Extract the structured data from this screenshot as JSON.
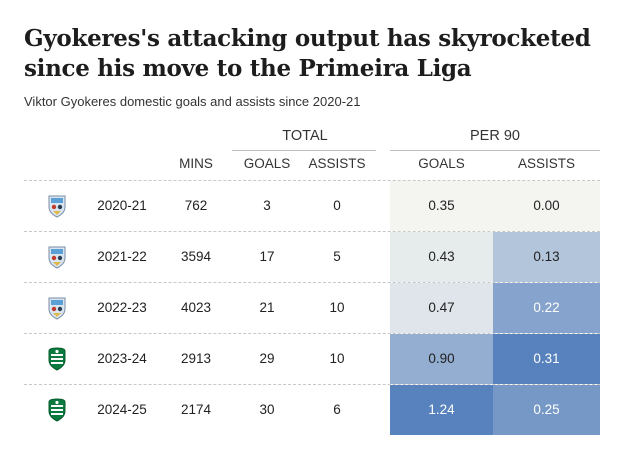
{
  "header": {
    "title": "Gyokeres's attacking output has skyrocketed since his move to the Primeira Liga",
    "subtitle": "Viktor Gyokeres domestic goals and assists since 2020-21"
  },
  "columns": {
    "total_group": "TOTAL",
    "per90_group": "PER 90",
    "mins": "MINS",
    "goals": "GOALS",
    "assists": "ASSISTS",
    "goals90": "GOALS",
    "assists90": "ASSISTS"
  },
  "colors": {
    "heat_low": "#f4f5f1",
    "heat_high": "#4a78b8",
    "grid": "#c8c8c8"
  },
  "icons": [
    "coventry-crest-icon",
    "coventry-crest-icon",
    "coventry-crest-icon",
    "sporting-crest-icon",
    "sporting-crest-icon"
  ],
  "chart_data": {
    "type": "table",
    "title": "Gyokeres's attacking output has skyrocketed since his move to the Primeira Liga",
    "subtitle": "Viktor Gyokeres domestic goals and assists since 2020-21",
    "columns": [
      "",
      "",
      "MINS",
      "GOALS",
      "ASSISTS",
      "GOALS",
      "ASSISTS"
    ],
    "rows": [
      {
        "club_icon": "coventry-crest-icon",
        "season": "2020-21",
        "mins": "762",
        "goals": "3",
        "assists": "0",
        "goals90": "0.35",
        "assists90": "0.00"
      },
      {
        "club_icon": "coventry-crest-icon",
        "season": "2021-22",
        "mins": "3594",
        "goals": "17",
        "assists": "5",
        "goals90": "0.43",
        "assists90": "0.13"
      },
      {
        "club_icon": "coventry-crest-icon",
        "season": "2022-23",
        "mins": "4023",
        "goals": "21",
        "assists": "10",
        "goals90": "0.47",
        "assists90": "0.22"
      },
      {
        "club_icon": "sporting-crest-icon",
        "season": "2023-24",
        "mins": "2913",
        "goals": "29",
        "assists": "10",
        "goals90": "0.90",
        "assists90": "0.31"
      },
      {
        "club_icon": "sporting-crest-icon",
        "season": "2024-25",
        "mins": "2174",
        "goals": "30",
        "assists": "6",
        "goals90": "1.24",
        "assists90": "0.25"
      }
    ]
  }
}
